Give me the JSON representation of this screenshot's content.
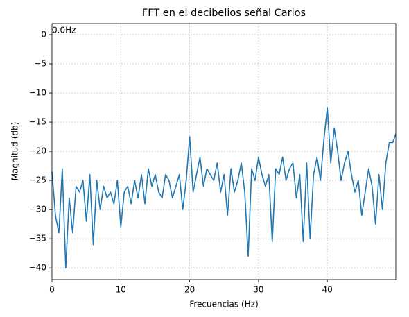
{
  "chart_data": {
    "type": "line",
    "title": "FFT en el decibelios señal Carlos",
    "xlabel": "Frecuencias (Hz)",
    "ylabel": "Magnitud (db)",
    "annotation": {
      "text": "0.0Hz",
      "x": 0,
      "y": 0
    },
    "x": [
      0,
      0.5,
      1,
      1.5,
      2,
      2.5,
      3,
      3.5,
      4,
      4.5,
      5,
      5.5,
      6,
      6.5,
      7,
      7.5,
      8,
      8.5,
      9,
      9.5,
      10,
      10.5,
      11,
      11.5,
      12,
      12.5,
      13,
      13.5,
      14,
      14.5,
      15,
      15.5,
      16,
      16.5,
      17,
      17.5,
      18,
      18.5,
      19,
      19.5,
      20,
      20.5,
      21,
      21.5,
      22,
      22.5,
      23,
      23.5,
      24,
      24.5,
      25,
      25.5,
      26,
      26.5,
      27,
      27.5,
      28,
      28.5,
      29,
      29.5,
      30,
      30.5,
      31,
      31.5,
      32,
      32.5,
      33,
      33.5,
      34,
      34.5,
      35,
      35.5,
      36,
      36.5,
      37,
      37.5,
      38,
      38.5,
      39,
      39.5,
      40,
      40.5,
      41,
      41.5,
      42,
      42.5,
      43,
      43.5,
      44,
      44.5,
      45,
      45.5,
      46,
      46.5,
      47,
      47.5,
      48,
      48.5,
      49,
      49.5,
      49.95
    ],
    "series": [
      {
        "name": "FFT",
        "color": "#1f77b4",
        "values": [
          -23.5,
          -31,
          -34,
          -23,
          -40,
          -28,
          -34,
          -26,
          -27,
          -25,
          -32,
          -24,
          -36,
          -25,
          -30,
          -26,
          -28,
          -27,
          -29,
          -25,
          -33,
          -27,
          -26,
          -29,
          -25,
          -28,
          -24,
          -29,
          -23,
          -26,
          -24,
          -27,
          -28,
          -24,
          -25,
          -28,
          -26,
          -24,
          -30,
          -25,
          -17.5,
          -27,
          -24,
          -21,
          -26,
          -23,
          -24,
          -25,
          -22,
          -27,
          -24,
          -31,
          -23,
          -27,
          -25,
          -22,
          -27,
          -38,
          -23,
          -25,
          -21,
          -24,
          -26,
          -24,
          -35.5,
          -23,
          -24,
          -21,
          -25,
          -23,
          -22,
          -28,
          -24,
          -35.5,
          -22,
          -35,
          -24,
          -21,
          -25,
          -18,
          -12.5,
          -22,
          -16,
          -20,
          -25,
          -22,
          -20,
          -24,
          -27,
          -25,
          -31,
          -27,
          -23,
          -26,
          -32.5,
          -24,
          -30,
          -22,
          -18.5,
          -18.5,
          -17
        ]
      }
    ],
    "xlim": [
      0,
      49.95
    ],
    "ylim": [
      -42,
      1.9
    ],
    "xticks": [
      0,
      10,
      20,
      30,
      40
    ],
    "yticks": [
      0,
      {
        "value": -5,
        "label": "−5"
      },
      {
        "value": -10,
        "label": "−10"
      },
      {
        "value": -15,
        "label": "−15"
      },
      {
        "value": -20,
        "label": "−20"
      },
      {
        "value": -25,
        "label": "−25"
      },
      {
        "value": -30,
        "label": "−30"
      },
      {
        "value": -35,
        "label": "−35"
      },
      {
        "value": -40,
        "label": "−40"
      }
    ],
    "grid": true
  }
}
